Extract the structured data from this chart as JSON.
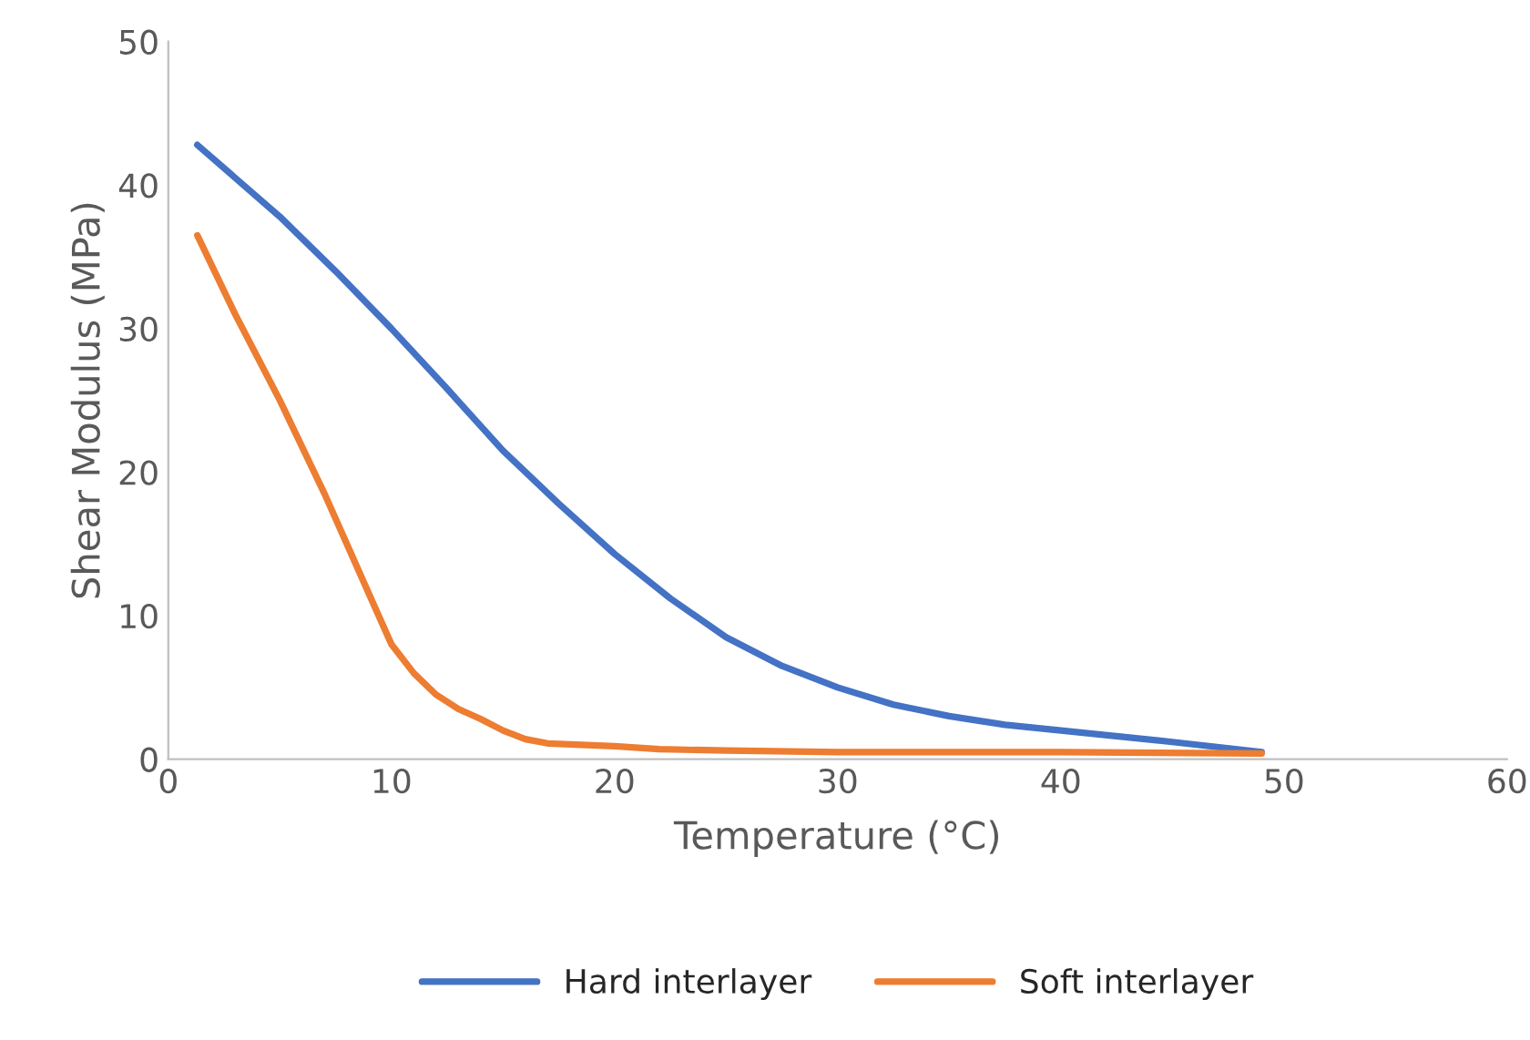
{
  "chart_data": {
    "type": "line",
    "xlabel": "Temperature (°C)",
    "ylabel": "Shear Modulus (MPa)",
    "xlim": [
      0,
      60
    ],
    "xticks": [
      0,
      10,
      20,
      30,
      40,
      50,
      60
    ],
    "ylim": [
      0,
      50
    ],
    "yticks": [
      0,
      10,
      20,
      30,
      40,
      50
    ],
    "grid": false,
    "legend": "bottom",
    "marker": "none",
    "line_style": "solid",
    "series": [
      {
        "name": "Hard interlayer",
        "color": "#4472c4",
        "x": [
          1.3,
          3,
          5,
          7.5,
          10,
          12.5,
          15,
          17.5,
          20,
          22.5,
          25,
          27.5,
          30,
          32.5,
          35,
          37.5,
          40,
          45,
          49
        ],
        "values": [
          42.8,
          40.5,
          37.8,
          34,
          30,
          25.8,
          21.5,
          17.8,
          14.3,
          11.2,
          8.5,
          6.5,
          5,
          3.8,
          3,
          2.4,
          2,
          1.2,
          0.5
        ]
      },
      {
        "name": "Soft interlayer",
        "color": "#ed7d31",
        "x": [
          1.3,
          3,
          5,
          7,
          8,
          9,
          10,
          11,
          12,
          13,
          14,
          15,
          16,
          17,
          20,
          22,
          25,
          30,
          40,
          49
        ],
        "values": [
          36.5,
          31,
          25,
          18.5,
          15,
          11.5,
          8,
          6,
          4.5,
          3.5,
          2.8,
          2,
          1.4,
          1.1,
          0.9,
          0.7,
          0.6,
          0.5,
          0.5,
          0.4
        ]
      }
    ]
  }
}
